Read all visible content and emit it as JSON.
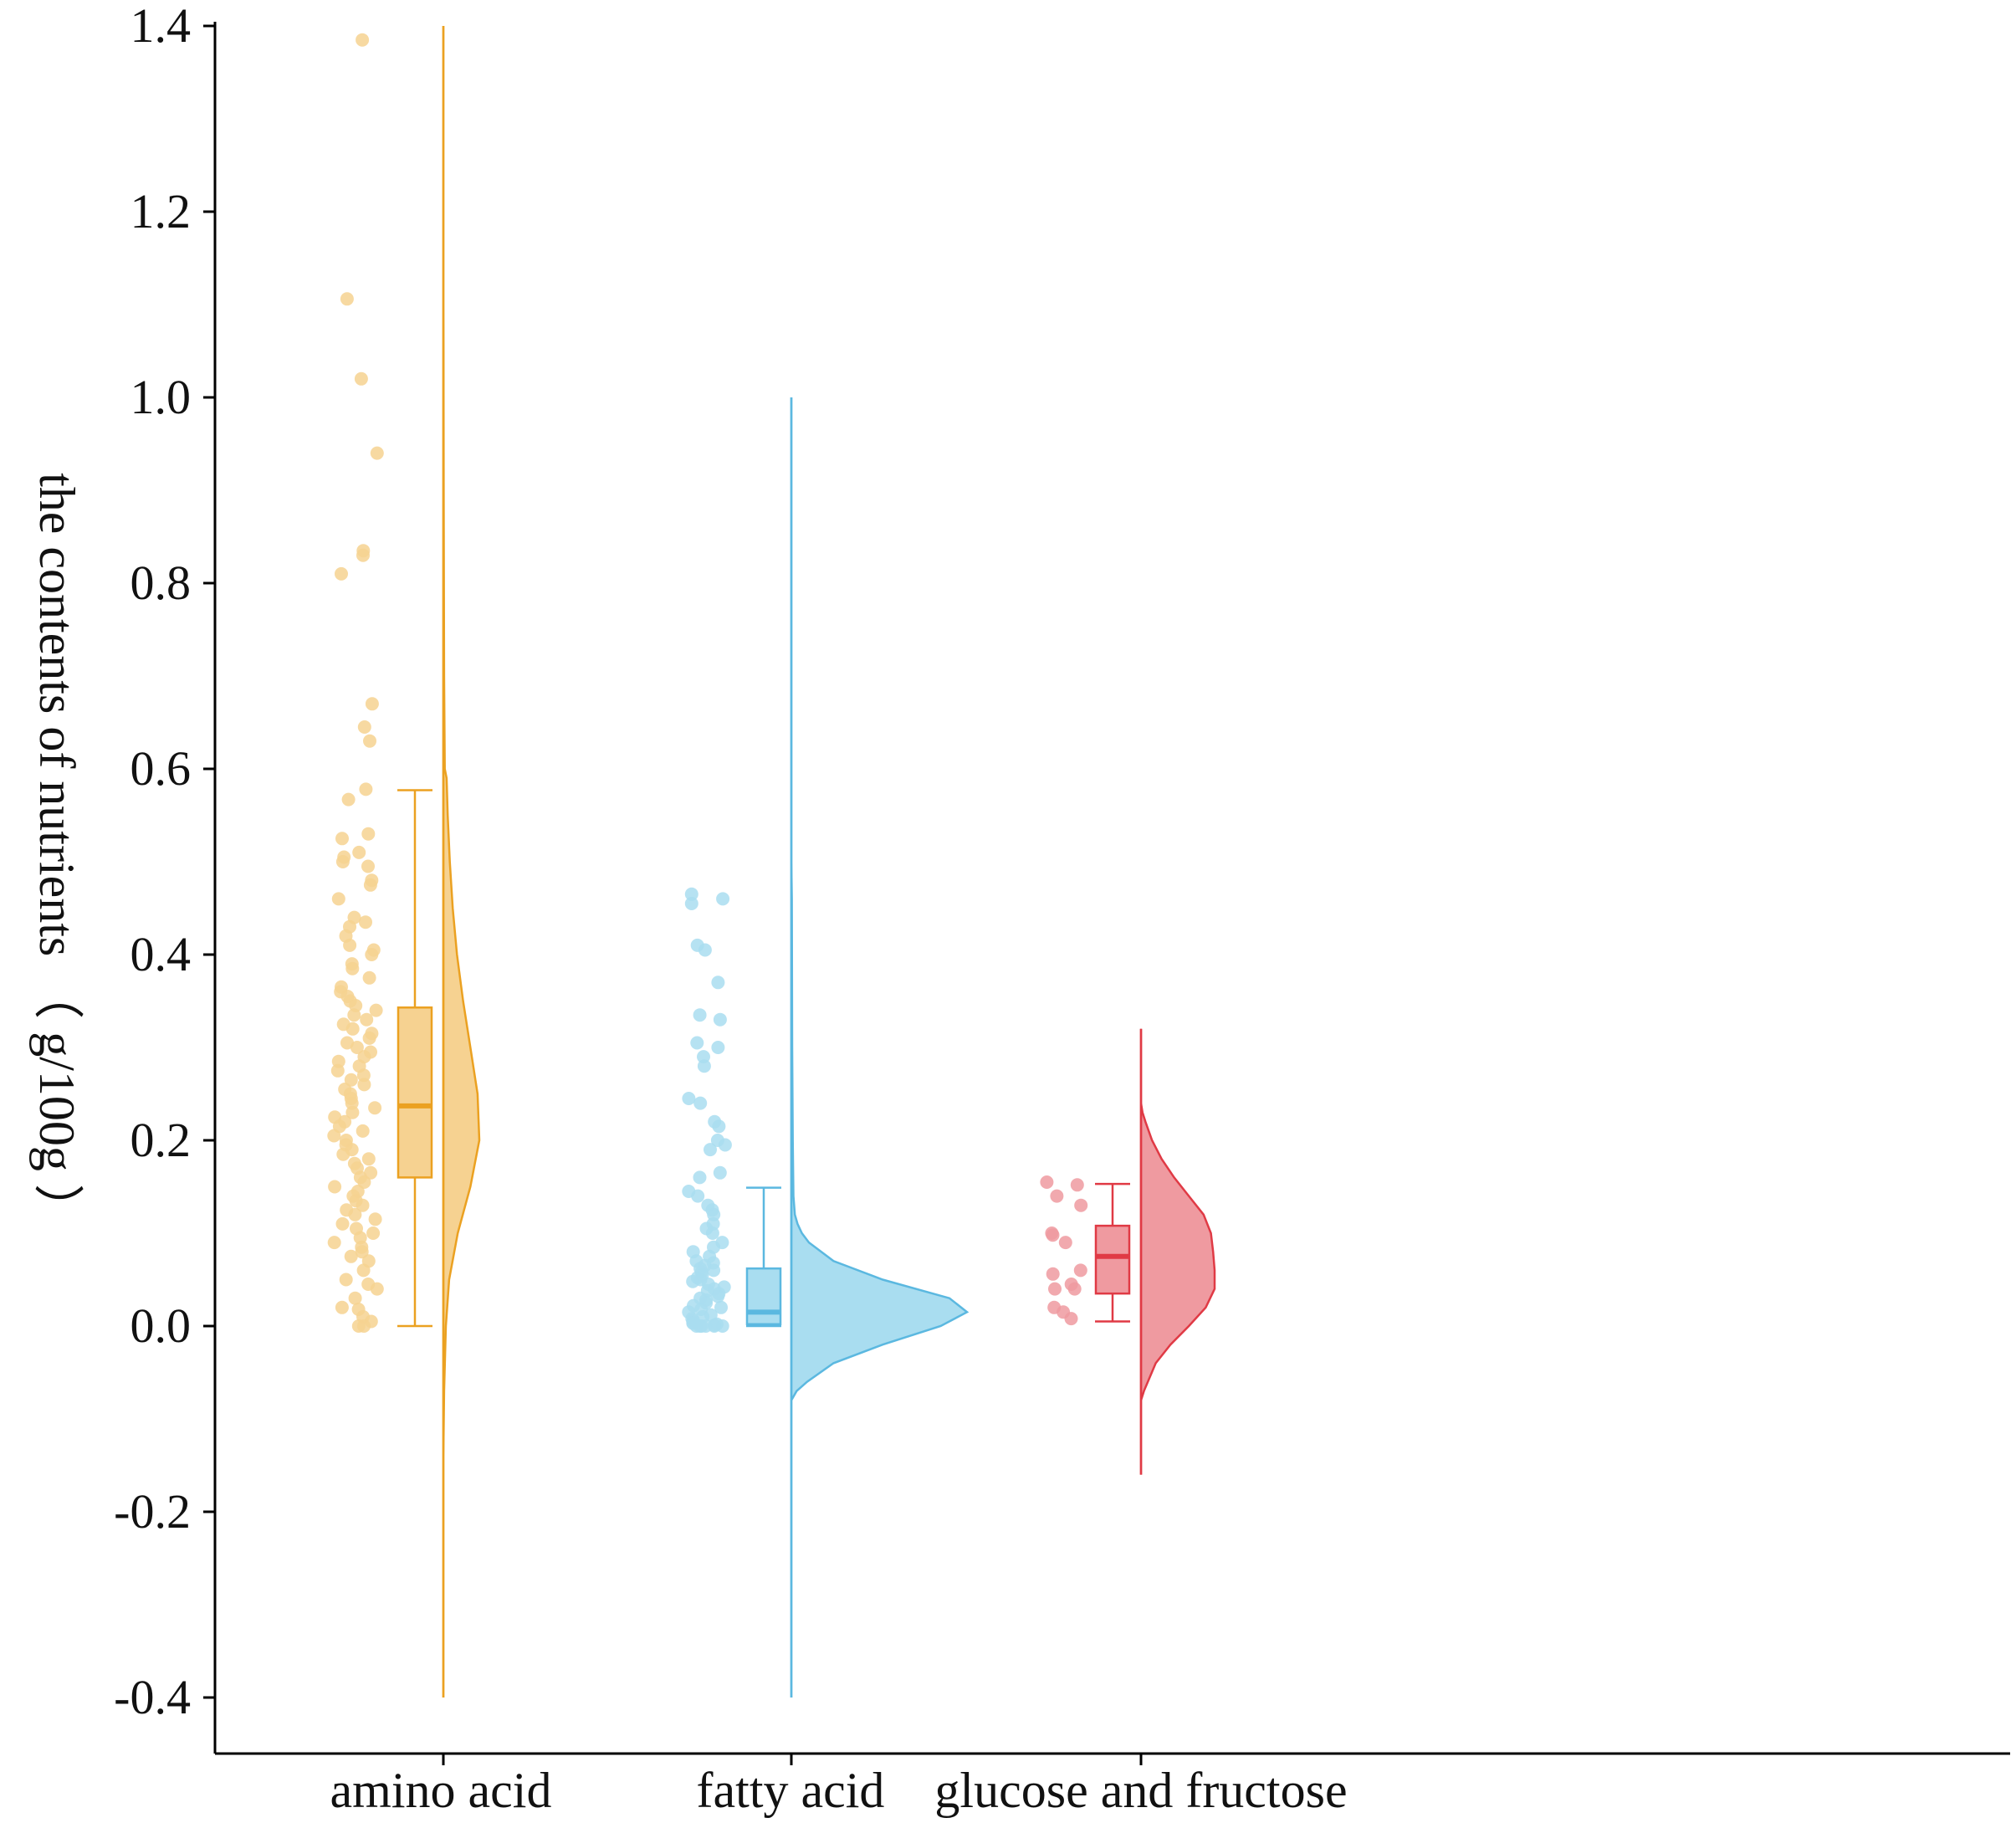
{
  "chart_data": {
    "type": "raincloud",
    "ylabel": "the contents of nutrients （ g/100g ）",
    "xlabel": "",
    "ylim": [
      -0.4,
      1.4
    ],
    "yticks": [
      "-0.4",
      "-0.2",
      "0.0",
      "0.2",
      "0.4",
      "0.6",
      "0.8",
      "1.0",
      "1.2",
      "1.4"
    ],
    "ytick_values": [
      -0.4,
      -0.2,
      0.0,
      0.2,
      0.4,
      0.6,
      0.8,
      1.0,
      1.2,
      1.4
    ],
    "grid": false,
    "legend": "none",
    "series": [
      {
        "name": "amino acid",
        "color": "#EBA121",
        "fill": "#F6D291",
        "box": {
          "whisker_low": 0.0,
          "q1": 0.16,
          "median": 0.237,
          "q3": 0.343,
          "whisker_high": 0.577
        },
        "density_range": [
          -0.4,
          1.4
        ],
        "density": [
          [
            -0.4,
            0.0
          ],
          [
            -0.14,
            0.0
          ],
          [
            -0.07,
            0.02
          ],
          [
            0.0,
            0.07
          ],
          [
            0.05,
            0.16
          ],
          [
            0.1,
            0.4
          ],
          [
            0.15,
            0.75
          ],
          [
            0.2,
            1.0
          ],
          [
            0.25,
            0.95
          ],
          [
            0.3,
            0.75
          ],
          [
            0.35,
            0.55
          ],
          [
            0.4,
            0.38
          ],
          [
            0.45,
            0.26
          ],
          [
            0.5,
            0.18
          ],
          [
            0.55,
            0.12
          ],
          [
            0.59,
            0.09
          ],
          [
            0.6,
            0.04
          ],
          [
            0.7,
            0.02
          ],
          [
            0.9,
            0.01
          ],
          [
            1.05,
            0.004
          ],
          [
            1.1,
            0.0
          ],
          [
            1.4,
            0.0
          ]
        ],
        "points": [
          1.385,
          1.106,
          1.02,
          0.94,
          0.835,
          0.83,
          0.81,
          0.67,
          0.645,
          0.63,
          0.578,
          0.567,
          0.53,
          0.525,
          0.51,
          0.505,
          0.5,
          0.495,
          0.48,
          0.475,
          0.46,
          0.44,
          0.435,
          0.43,
          0.42,
          0.41,
          0.405,
          0.4,
          0.39,
          0.385,
          0.375,
          0.365,
          0.36,
          0.355,
          0.35,
          0.345,
          0.34,
          0.335,
          0.33,
          0.325,
          0.32,
          0.315,
          0.31,
          0.305,
          0.3,
          0.295,
          0.29,
          0.285,
          0.28,
          0.275,
          0.27,
          0.265,
          0.26,
          0.255,
          0.25,
          0.245,
          0.24,
          0.235,
          0.23,
          0.225,
          0.22,
          0.215,
          0.21,
          0.205,
          0.2,
          0.195,
          0.19,
          0.185,
          0.18,
          0.175,
          0.17,
          0.165,
          0.16,
          0.155,
          0.15,
          0.145,
          0.14,
          0.135,
          0.13,
          0.125,
          0.12,
          0.115,
          0.11,
          0.105,
          0.1,
          0.095,
          0.09,
          0.085,
          0.08,
          0.075,
          0.07,
          0.06,
          0.05,
          0.045,
          0.04,
          0.03,
          0.02,
          0.018,
          0.01,
          0.005,
          0.0,
          0.0
        ]
      },
      {
        "name": "fatty acid",
        "color": "#5BB8E0",
        "fill": "#A9DDF0",
        "box": {
          "whisker_low": 0.0,
          "q1": 0.002,
          "median": 0.015,
          "q3": 0.062,
          "whisker_high": 0.149
        },
        "density_range": [
          -0.4,
          1.0
        ],
        "density": [
          [
            -0.4,
            0.0
          ],
          [
            -0.08,
            0.0
          ],
          [
            -0.07,
            0.03
          ],
          [
            -0.06,
            0.09
          ],
          [
            -0.04,
            0.24
          ],
          [
            -0.02,
            0.52
          ],
          [
            0.0,
            0.85
          ],
          [
            0.015,
            1.0
          ],
          [
            0.03,
            0.9
          ],
          [
            0.05,
            0.52
          ],
          [
            0.07,
            0.24
          ],
          [
            0.09,
            0.1
          ],
          [
            0.1,
            0.06
          ],
          [
            0.11,
            0.035
          ],
          [
            0.12,
            0.02
          ],
          [
            0.14,
            0.012
          ],
          [
            0.2,
            0.008
          ],
          [
            0.3,
            0.005
          ],
          [
            0.46,
            0.003
          ],
          [
            0.5,
            0.0
          ],
          [
            1.0,
            0.0
          ]
        ],
        "points": [
          0.465,
          0.46,
          0.455,
          0.41,
          0.405,
          0.37,
          0.335,
          0.33,
          0.305,
          0.3,
          0.29,
          0.28,
          0.245,
          0.24,
          0.22,
          0.215,
          0.2,
          0.195,
          0.19,
          0.165,
          0.16,
          0.145,
          0.14,
          0.13,
          0.125,
          0.12,
          0.11,
          0.105,
          0.1,
          0.09,
          0.085,
          0.08,
          0.075,
          0.07,
          0.068,
          0.065,
          0.062,
          0.06,
          0.058,
          0.055,
          0.052,
          0.05,
          0.048,
          0.045,
          0.042,
          0.04,
          0.038,
          0.035,
          0.032,
          0.03,
          0.028,
          0.025,
          0.022,
          0.02,
          0.018,
          0.015,
          0.012,
          0.01,
          0.008,
          0.006,
          0.004,
          0.003,
          0.002,
          0.001,
          0.0,
          0.0,
          0.0,
          0.0,
          0.0,
          0.0
        ]
      },
      {
        "name": "glucose and fructose",
        "color": "#E03A45",
        "fill": "#EF9AA0",
        "box": {
          "whisker_low": 0.005,
          "q1": 0.035,
          "median": 0.075,
          "q3": 0.108,
          "whisker_high": 0.153
        },
        "density_range": [
          -0.16,
          0.32
        ],
        "density": [
          [
            -0.16,
            0.0
          ],
          [
            -0.08,
            0.0
          ],
          [
            -0.07,
            0.04
          ],
          [
            -0.04,
            0.2
          ],
          [
            -0.02,
            0.4
          ],
          [
            0.0,
            0.65
          ],
          [
            0.02,
            0.88
          ],
          [
            0.04,
            1.0
          ],
          [
            0.06,
            1.0
          ],
          [
            0.08,
            0.98
          ],
          [
            0.1,
            0.95
          ],
          [
            0.12,
            0.85
          ],
          [
            0.14,
            0.65
          ],
          [
            0.16,
            0.45
          ],
          [
            0.18,
            0.28
          ],
          [
            0.2,
            0.15
          ],
          [
            0.22,
            0.06
          ],
          [
            0.23,
            0.02
          ],
          [
            0.24,
            0.0
          ],
          [
            0.32,
            0.0
          ]
        ],
        "points": [
          0.155,
          0.152,
          0.14,
          0.13,
          0.1,
          0.098,
          0.09,
          0.06,
          0.056,
          0.045,
          0.04,
          0.04,
          0.02,
          0.015,
          0.008
        ]
      }
    ]
  }
}
